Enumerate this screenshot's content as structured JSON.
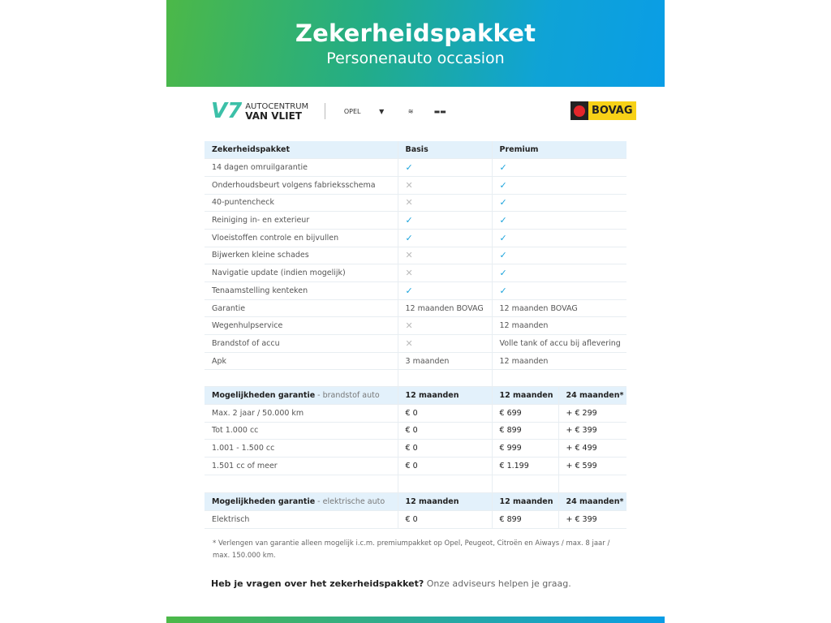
{
  "header": {
    "title": "Zekerheidspakket",
    "subtitle": "Personenauto occasion"
  },
  "logos": {
    "dealer_line1": "AUTOCENTRUM",
    "dealer_line2": "VAN VLIET",
    "brands": [
      "OPEL",
      "PEUGEOT",
      "CITROËN",
      "AIWAYS"
    ],
    "bovag": "BOVAG"
  },
  "package_table": {
    "headers": [
      "Zekerheidspakket",
      "Basis",
      "Premium"
    ],
    "rows": [
      {
        "label": "14 dagen omruilgarantie",
        "basis": "check",
        "premium": "check"
      },
      {
        "label": "Onderhoudsbeurt volgens fabrieksschema",
        "basis": "cross",
        "premium": "check"
      },
      {
        "label": "40-puntencheck",
        "basis": "cross",
        "premium": "check"
      },
      {
        "label": "Reiniging in- en exterieur",
        "basis": "check",
        "premium": "check"
      },
      {
        "label": "Vloeistoffen controle en bijvullen",
        "basis": "check",
        "premium": "check"
      },
      {
        "label": "Bijwerken kleine schades",
        "basis": "cross",
        "premium": "check"
      },
      {
        "label": "Navigatie update (indien mogelijk)",
        "basis": "cross",
        "premium": "check"
      },
      {
        "label": "Tenaamstelling kenteken",
        "basis": "check",
        "premium": "check"
      },
      {
        "label": "Garantie",
        "basis": "12 maanden BOVAG",
        "premium": "12 maanden BOVAG"
      },
      {
        "label": "Wegenhulpservice",
        "basis": "cross",
        "premium": "12 maanden"
      },
      {
        "label": "Brandstof of accu",
        "basis": "cross",
        "premium": "Volle tank of accu bij aflevering"
      },
      {
        "label": "Apk",
        "basis": "3 maanden",
        "premium": "12 maanden"
      }
    ]
  },
  "fuel_table": {
    "header_bold": "Mogelijkheden garantie",
    "header_sub": " - brandstof auto",
    "headers": [
      "12 maanden",
      "12 maanden",
      "24 maanden*"
    ],
    "rows": [
      [
        "Max. 2 jaar / 50.000 km",
        "€ 0",
        "€ 699",
        "+ € 299"
      ],
      [
        "Tot 1.000 cc",
        "€ 0",
        "€ 899",
        "+ € 399"
      ],
      [
        "1.001 - 1.500 cc",
        "€ 0",
        "€ 999",
        "+ € 499"
      ],
      [
        "1.501 cc of meer",
        "€ 0",
        "€ 1.199",
        "+ € 599"
      ]
    ]
  },
  "electric_table": {
    "header_bold": "Mogelijkheden garantie",
    "header_sub": " - elektrische auto",
    "headers": [
      "12 maanden",
      "12 maanden",
      "24 maanden*"
    ],
    "rows": [
      [
        "Elektrisch",
        "€ 0",
        "€ 899",
        "+ € 399"
      ]
    ]
  },
  "footnote": "* Verlengen van garantie alleen mogelijk i.c.m. premiumpakket op Opel, Peugeot, Citroën en Aiways / max. 8 jaar / max. 150.000 km.",
  "question": {
    "bold": "Heb je vragen over het zekerheidspakket?",
    "rest": " Onze adviseurs helpen je graag."
  },
  "icons": {
    "check": "✓",
    "cross": "✕"
  },
  "colors": {
    "accent_blue": "#1aa3dc",
    "header_row": "#e3f1fb",
    "gradient_start": "#4cb848",
    "gradient_end": "#0a9de6"
  }
}
